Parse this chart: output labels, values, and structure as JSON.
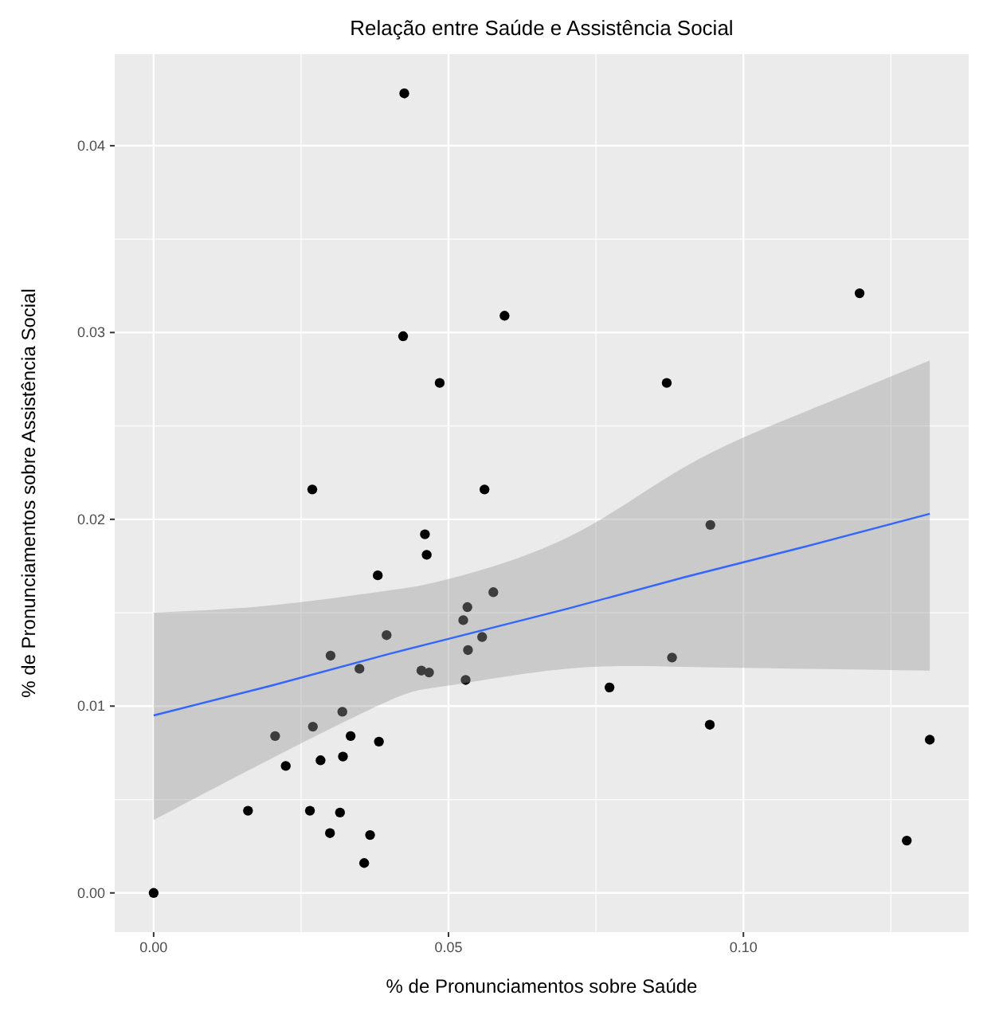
{
  "chart_data": {
    "type": "scatter",
    "title": "Relação entre Saúde e Assistência Social",
    "xlabel": "% de Pronunciamentos sobre Saúde",
    "ylabel": "% de Pronunciamentos sobre Assistência Social",
    "xlim": [
      -0.0066,
      0.1382
    ],
    "ylim": [
      -0.0021,
      0.0449
    ],
    "xticks": [
      {
        "value": 0,
        "label": "0.00"
      },
      {
        "value": 0.05,
        "label": "0.05"
      },
      {
        "value": 0.1,
        "label": "0.10"
      }
    ],
    "yticks": [
      {
        "value": 0,
        "label": "0.00"
      },
      {
        "value": 0.01,
        "label": "0.01"
      },
      {
        "value": 0.02,
        "label": "0.02"
      },
      {
        "value": 0.03,
        "label": "0.03"
      },
      {
        "value": 0.04,
        "label": "0.04"
      }
    ],
    "grid": true,
    "marker": "circle",
    "series": [
      {
        "color": "#000000",
        "x": [
          0,
          0.016,
          0.0206,
          0.0224,
          0.0265,
          0.027,
          0.0283,
          0.0299,
          0.03,
          0.0316,
          0.032,
          0.0321,
          0.0334,
          0.0349,
          0.0357,
          0.0367,
          0.0382,
          0.038,
          0.0395,
          0.0454,
          0.0467,
          0.046,
          0.0463,
          0.0525,
          0.0532,
          0.0529,
          0.0533,
          0.0557,
          0.0576,
          0.0595,
          0.0423,
          0.0485,
          0.0269,
          0.0561,
          0.0425,
          0.1197,
          0.087,
          0.0944,
          0.0879,
          0.0773,
          0.0943,
          0.1316,
          0.1277
        ],
        "values": [
          0,
          0.0044,
          0.0084,
          0.0068,
          0.0044,
          0.0089,
          0.0071,
          0.0032,
          0.0127,
          0.0043,
          0.0097,
          0.0073,
          0.0084,
          0.012,
          0.0016,
          0.0031,
          0.0081,
          0.017,
          0.0138,
          0.0119,
          0.0118,
          0.0192,
          0.0181,
          0.0146,
          0.0153,
          0.0114,
          0.013,
          0.0137,
          0.0161,
          0.0309,
          0.0298,
          0.0273,
          0.0216,
          0.0216,
          0.0428,
          0.0321,
          0.0273,
          0.0197,
          0.0126,
          0.011,
          0.009,
          0.0082,
          0.0028
        ]
      },
      {
        "type": "line",
        "color": "#3366ff",
        "marker": "none",
        "x": [
          0,
          0.02,
          0.04,
          0.05,
          0.07,
          0.09,
          0.11,
          0.1316
        ],
        "values": [
          0.0095,
          0.0111,
          0.0128,
          0.0136,
          0.0152,
          0.0169,
          0.0185,
          0.0203
        ],
        "lower": [
          0.0039,
          0.0072,
          0.0103,
          0.0111,
          0.012,
          0.0121,
          0.012,
          0.0119
        ],
        "upper": [
          0.015,
          0.0154,
          0.0162,
          0.0168,
          0.019,
          0.0228,
          0.0257,
          0.0285
        ]
      }
    ]
  }
}
